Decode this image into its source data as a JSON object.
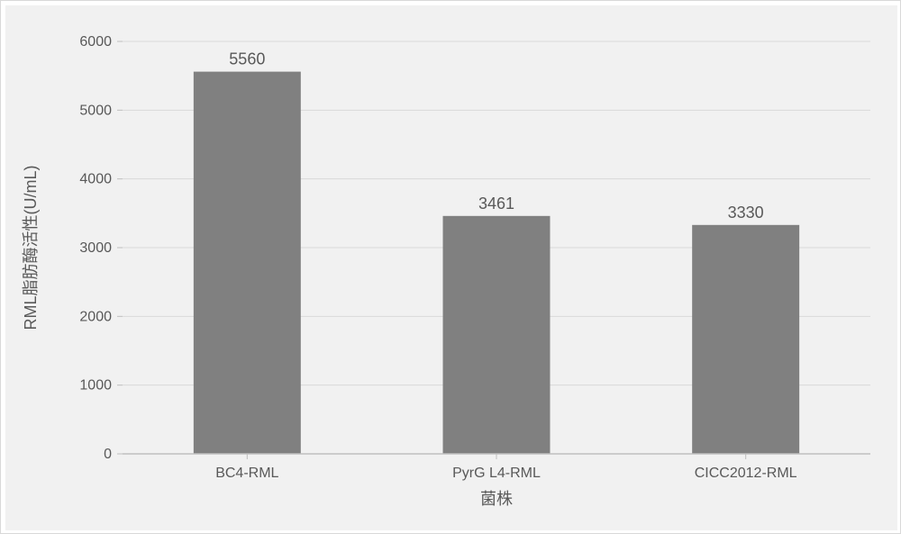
{
  "chart": {
    "type": "bar",
    "categories": [
      "BC4-RML",
      "PyrG L4-RML",
      "CICC2012-RML"
    ],
    "values": [
      5560,
      3461,
      3330
    ],
    "bar_color": "#808080",
    "bar_border_color": "#808080",
    "data_label_color": "#595959",
    "data_label_fontsize": 18,
    "ylabel": "RML脂肪酶活性(U/mL)",
    "xlabel": "菌株",
    "axis_label_color": "#595959",
    "axis_label_fontsize": 18,
    "tick_label_color": "#595959",
    "tick_label_fontsize": 16,
    "ylim": [
      0,
      6000
    ],
    "ytick_step": 1000,
    "yticks": [
      0,
      1000,
      2000,
      3000,
      4000,
      5000,
      6000
    ],
    "background_color": "#f1f1f1",
    "grid_color": "#d9d9d9",
    "axis_line_color": "#bfbfbf",
    "bar_width_ratio": 0.43,
    "outer_border_color": "#d9d9d9"
  }
}
